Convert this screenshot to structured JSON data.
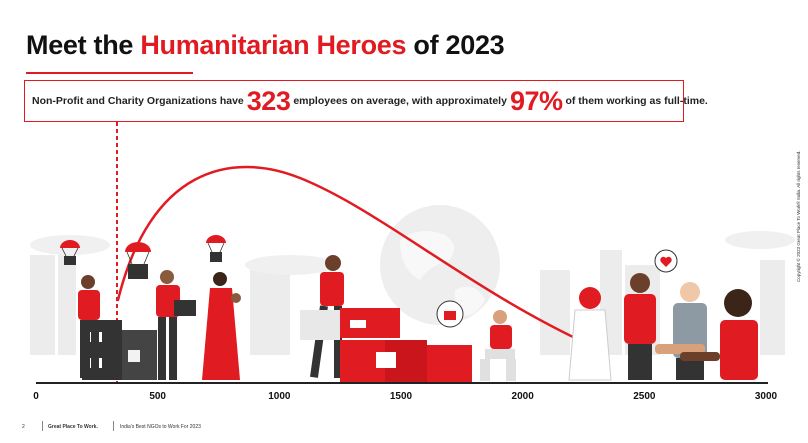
{
  "title": {
    "prefix": "Meet the ",
    "highlight": "Humanitarian Heroes",
    "suffix": " of 2023"
  },
  "stat": {
    "text_1": "Non-Profit and Charity Organizations have",
    "employees_value": "323",
    "text_2": "employees on average, with approximately",
    "fulltime_value": "97%",
    "text_3": "of them working as full-time."
  },
  "axis": {
    "ticks": [
      "0",
      "500",
      "1000",
      "1500",
      "2000",
      "2500",
      "3000"
    ],
    "range": [
      0,
      3000
    ],
    "average_marker_value": 323
  },
  "footer": {
    "page_number": "2",
    "brand": "Great Place To Work.",
    "report_title": "India's Best NGOs to Work For 2023"
  },
  "copyright": "Copyright © 2023 Great Place To Work® India. All rights reserved.",
  "colors": {
    "accent": "#e11b22",
    "dark": "#333333",
    "grey": "#d9d9d9"
  }
}
